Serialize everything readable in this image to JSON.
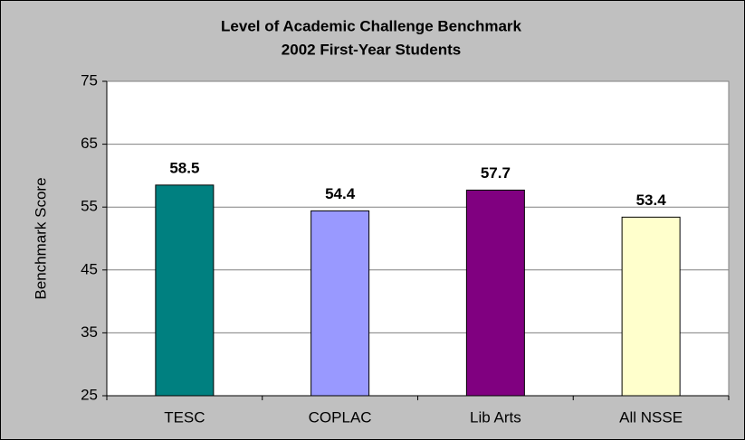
{
  "chart_data": {
    "type": "bar",
    "title": "Level of Academic Challenge Benchmark",
    "subtitle": "2002 First-Year Students",
    "y_label": "Benchmark Score",
    "categories": [
      "TESC",
      "COPLAC",
      "Lib Arts",
      "All NSSE"
    ],
    "values": [
      58.5,
      54.4,
      57.7,
      53.4
    ],
    "colors": [
      "#008080",
      "#9999ff",
      "#800080",
      "#ffffcc"
    ],
    "ylim": [
      25,
      75
    ],
    "yticks": [
      25,
      35,
      45,
      55,
      65,
      75
    ],
    "grid": true
  }
}
